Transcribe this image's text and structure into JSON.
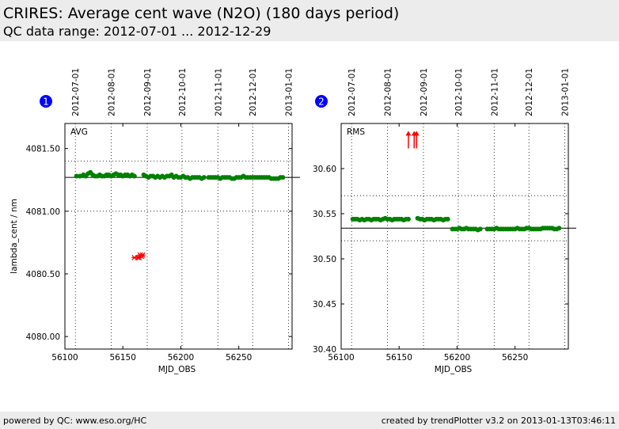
{
  "header": {
    "title": "CRIRES: Average cent wave (N2O) (180 days period)",
    "subtitle": "QC data range: 2012-07-01 ... 2012-12-29"
  },
  "footer": {
    "left": "powered by QC: www.eso.org/HC",
    "right": "created by trendPlotter v3.2 on 2013-01-13T03:46:11"
  },
  "colors": {
    "data": "#008000",
    "outlier": "#ff0000",
    "badge": "#0000ff",
    "header_bg": "#ececec"
  },
  "chart_data": [
    {
      "type": "scatter",
      "badge": "1",
      "panel_label": "AVG",
      "xlabel": "MJD_OBS",
      "ylabel": "lambda_cent / nm",
      "xlim": [
        56100,
        56296
      ],
      "ylim": [
        4079.9,
        4081.7
      ],
      "xticks": [
        56100,
        56150,
        56200,
        56250
      ],
      "yticks": [
        4080.0,
        4080.5,
        4081.0,
        4081.5
      ],
      "ytick_labels": [
        "4080.00",
        "4080.50",
        "4081.00",
        "4081.50"
      ],
      "date_ticks": [
        {
          "label": "2012-07-01",
          "mjd": 56109
        },
        {
          "label": "2012-08-01",
          "mjd": 56140
        },
        {
          "label": "2012-09-01",
          "mjd": 56171
        },
        {
          "label": "2012-10-01",
          "mjd": 56201
        },
        {
          "label": "2012-11-01",
          "mjd": 56232
        },
        {
          "label": "2012-12-01",
          "mjd": 56262
        },
        {
          "label": "2013-01-01",
          "mjd": 56293
        }
      ],
      "reference_line": 4081.27,
      "threshold_lines": [
        4081.4,
        4081.0
      ],
      "series": [
        {
          "role": "data",
          "x": [
            56110,
            56113,
            56116,
            56118,
            56120,
            56122,
            56124,
            56126,
            56128,
            56130,
            56132,
            56134,
            56136,
            56138,
            56140,
            56142,
            56144,
            56146,
            56148,
            56150,
            56152,
            56154,
            56156,
            56158,
            56160,
            56168,
            56170,
            56172,
            56174,
            56176,
            56178,
            56180,
            56182,
            56184,
            56186,
            56188,
            56190,
            56192,
            56194,
            56196,
            56198,
            56200,
            56202,
            56204,
            56206,
            56208,
            56210,
            56212,
            56214,
            56216,
            56218,
            56220,
            56224,
            56226,
            56228,
            56230,
            56232,
            56234,
            56236,
            56238,
            56240,
            56242,
            56244,
            56246,
            56248,
            56250,
            56252,
            56254,
            56256,
            56258,
            56260,
            56262,
            56264,
            56266,
            56268,
            56270,
            56272,
            56274,
            56276,
            56278,
            56280,
            56282,
            56284,
            56286,
            56288
          ],
          "y": [
            4081.28,
            4081.28,
            4081.29,
            4081.28,
            4081.3,
            4081.31,
            4081.29,
            4081.28,
            4081.28,
            4081.29,
            4081.28,
            4081.28,
            4081.29,
            4081.29,
            4081.28,
            4081.29,
            4081.3,
            4081.29,
            4081.29,
            4081.28,
            4081.29,
            4081.29,
            4081.28,
            4081.29,
            4081.28,
            4081.29,
            4081.28,
            4081.27,
            4081.28,
            4081.28,
            4081.27,
            4081.28,
            4081.27,
            4081.28,
            4081.27,
            4081.28,
            4081.28,
            4081.29,
            4081.27,
            4081.28,
            4081.27,
            4081.27,
            4081.28,
            4081.27,
            4081.27,
            4081.26,
            4081.27,
            4081.27,
            4081.27,
            4081.27,
            4081.26,
            4081.27,
            4081.27,
            4081.27,
            4081.27,
            4081.27,
            4081.27,
            4081.26,
            4081.27,
            4081.27,
            4081.27,
            4081.27,
            4081.26,
            4081.26,
            4081.27,
            4081.27,
            4081.27,
            4081.28,
            4081.27,
            4081.27,
            4081.27,
            4081.27,
            4081.27,
            4081.27,
            4081.27,
            4081.27,
            4081.27,
            4081.27,
            4081.27,
            4081.26,
            4081.26,
            4081.26,
            4081.26,
            4081.27,
            4081.27
          ]
        },
        {
          "role": "outlier",
          "x": [
            56160,
            56163,
            56164,
            56165,
            56166,
            56167
          ],
          "y": [
            4080.63,
            4080.63,
            4080.63,
            4080.65,
            4080.64,
            4080.65
          ]
        }
      ]
    },
    {
      "type": "scatter",
      "badge": "2",
      "panel_label": "RMS",
      "xlabel": "MJD_OBS",
      "ylabel": "",
      "xlim": [
        56100,
        56296
      ],
      "ylim": [
        30.4,
        30.65
      ],
      "xticks": [
        56100,
        56150,
        56200,
        56250
      ],
      "yticks": [
        30.4,
        30.45,
        30.5,
        30.55,
        30.6
      ],
      "ytick_labels": [
        "30.40",
        "30.45",
        "30.50",
        "30.55",
        "30.60"
      ],
      "date_ticks": [
        {
          "label": "2012-07-01",
          "mjd": 56109
        },
        {
          "label": "2012-08-01",
          "mjd": 56140
        },
        {
          "label": "2012-09-01",
          "mjd": 56171
        },
        {
          "label": "2012-10-01",
          "mjd": 56201
        },
        {
          "label": "2012-11-01",
          "mjd": 56232
        },
        {
          "label": "2012-12-01",
          "mjd": 56262
        },
        {
          "label": "2013-01-01",
          "mjd": 56293
        }
      ],
      "reference_line": 30.534,
      "threshold_lines": [
        30.57,
        30.52
      ],
      "series": [
        {
          "role": "data",
          "x": [
            56110,
            56112,
            56114,
            56116,
            56118,
            56120,
            56122,
            56124,
            56126,
            56128,
            56130,
            56132,
            56134,
            56136,
            56138,
            56140,
            56142,
            56144,
            56146,
            56148,
            56150,
            56152,
            56154,
            56156,
            56158,
            56166,
            56168,
            56170,
            56172,
            56174,
            56176,
            56178,
            56180,
            56182,
            56184,
            56186,
            56188,
            56190,
            56192,
            56196,
            56198,
            56200,
            56202,
            56204,
            56206,
            56208,
            56210,
            56212,
            56214,
            56216,
            56218,
            56220,
            56226,
            56228,
            56230,
            56232,
            56234,
            56236,
            56238,
            56240,
            56242,
            56244,
            56246,
            56248,
            56250,
            56252,
            56254,
            56256,
            56258,
            56260,
            56262,
            56264,
            56266,
            56268,
            56270,
            56272,
            56274,
            56276,
            56278,
            56280,
            56282,
            56284,
            56286,
            56288
          ],
          "y": [
            30.544,
            30.544,
            30.544,
            30.543,
            30.544,
            30.543,
            30.544,
            30.544,
            30.543,
            30.544,
            30.544,
            30.544,
            30.543,
            30.544,
            30.545,
            30.544,
            30.544,
            30.543,
            30.544,
            30.544,
            30.544,
            30.544,
            30.543,
            30.544,
            30.544,
            30.545,
            30.544,
            30.544,
            30.543,
            30.544,
            30.544,
            30.544,
            30.543,
            30.544,
            30.544,
            30.544,
            30.543,
            30.544,
            30.544,
            30.533,
            30.533,
            30.533,
            30.534,
            30.533,
            30.533,
            30.534,
            30.533,
            30.533,
            30.533,
            30.533,
            30.532,
            30.533,
            30.533,
            30.533,
            30.533,
            30.533,
            30.534,
            30.533,
            30.533,
            30.533,
            30.533,
            30.533,
            30.533,
            30.533,
            30.533,
            30.534,
            30.533,
            30.533,
            30.533,
            30.534,
            30.534,
            30.533,
            30.533,
            30.533,
            30.533,
            30.533,
            30.534,
            30.534,
            30.534,
            30.534,
            30.534,
            30.533,
            30.533,
            30.534
          ]
        },
        {
          "role": "outlier",
          "markers": "arrow-up",
          "x": [
            56158,
            56163,
            56165
          ],
          "y": [
            30.64,
            30.64,
            30.64
          ]
        }
      ]
    }
  ]
}
